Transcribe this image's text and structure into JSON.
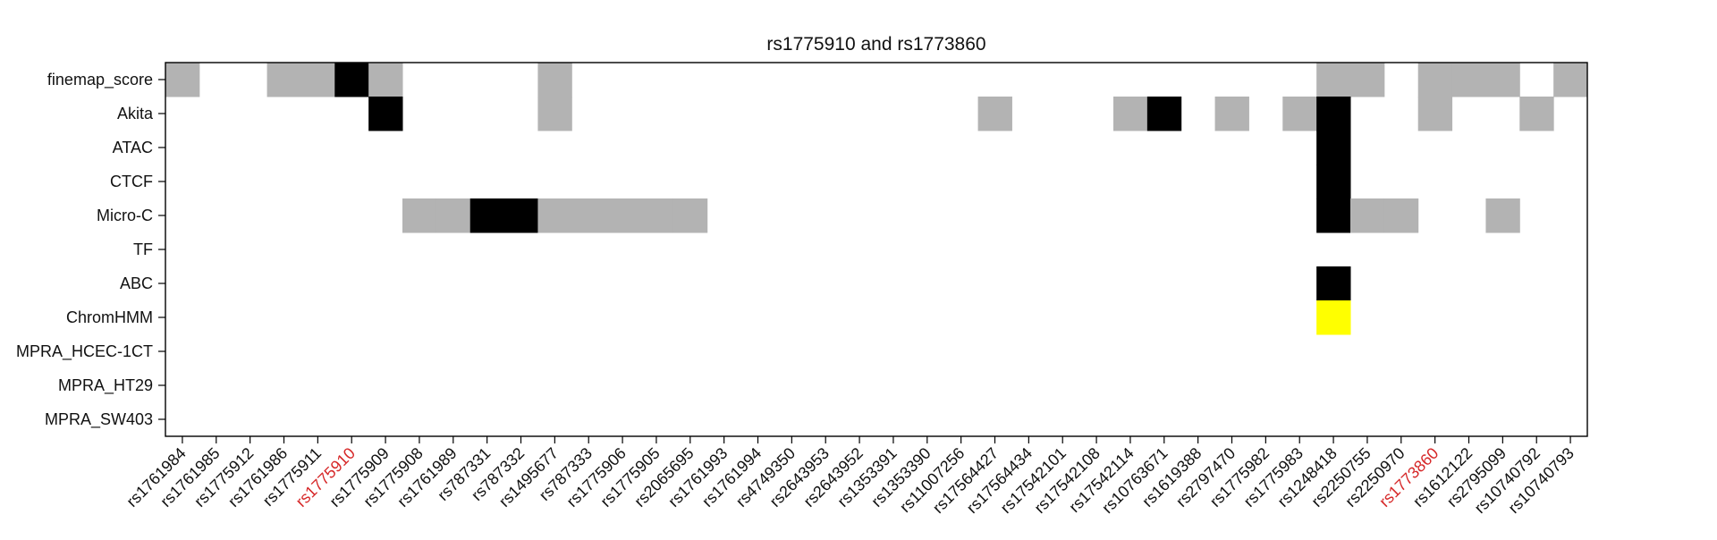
{
  "chart_data": {
    "type": "heatmap",
    "title": "rs1775910 and rs1773860",
    "rows": [
      "finemap_score",
      "Akita",
      "ATAC",
      "CTCF",
      "Micro-C",
      "TF",
      "ABC",
      "ChromHMM",
      "MPRA_HCEC-1CT",
      "MPRA_HT29",
      "MPRA_SW403"
    ],
    "columns": [
      "rs1761984",
      "rs1761985",
      "rs1775912",
      "rs1761986",
      "rs1775911",
      "rs1775910",
      "rs1775909",
      "rs1775908",
      "rs1761989",
      "rs787331",
      "rs787332",
      "rs1495677",
      "rs787333",
      "rs1775906",
      "rs1775905",
      "rs2065695",
      "rs1761993",
      "rs1761994",
      "rs4749350",
      "rs2643953",
      "rs2643952",
      "rs1353391",
      "rs1353390",
      "rs11007256",
      "rs17564427",
      "rs17564434",
      "rs17542101",
      "rs17542108",
      "rs17542114",
      "rs10763671",
      "rs1619388",
      "rs2797470",
      "rs1775982",
      "rs1775983",
      "rs1248418",
      "rs2250755",
      "rs2250970",
      "rs1773860",
      "rs1612122",
      "rs2795099",
      "rs10740792",
      "rs10740793"
    ],
    "highlighted_columns": [
      "rs1775910",
      "rs1773860"
    ],
    "highlight_color": "#d62728",
    "legend": {
      "0": "#ffffff",
      "1": "#b3b3b3",
      "2": "#000000",
      "3": "#ffff00"
    },
    "matrix": [
      [
        1,
        0,
        0,
        1,
        1,
        2,
        1,
        0,
        0,
        0,
        0,
        1,
        0,
        0,
        0,
        0,
        0,
        0,
        0,
        0,
        0,
        0,
        0,
        0,
        0,
        0,
        0,
        0,
        0,
        0,
        0,
        0,
        0,
        0,
        1,
        1,
        0,
        1,
        1,
        1,
        0,
        1
      ],
      [
        0,
        0,
        0,
        0,
        0,
        0,
        2,
        0,
        0,
        0,
        0,
        1,
        0,
        0,
        0,
        0,
        0,
        0,
        0,
        0,
        0,
        0,
        0,
        0,
        1,
        0,
        0,
        0,
        1,
        2,
        0,
        1,
        0,
        1,
        2,
        0,
        0,
        1,
        0,
        0,
        1,
        0
      ],
      [
        0,
        0,
        0,
        0,
        0,
        0,
        0,
        0,
        0,
        0,
        0,
        0,
        0,
        0,
        0,
        0,
        0,
        0,
        0,
        0,
        0,
        0,
        0,
        0,
        0,
        0,
        0,
        0,
        0,
        0,
        0,
        0,
        0,
        0,
        2,
        0,
        0,
        0,
        0,
        0,
        0,
        0
      ],
      [
        0,
        0,
        0,
        0,
        0,
        0,
        0,
        0,
        0,
        0,
        0,
        0,
        0,
        0,
        0,
        0,
        0,
        0,
        0,
        0,
        0,
        0,
        0,
        0,
        0,
        0,
        0,
        0,
        0,
        0,
        0,
        0,
        0,
        0,
        2,
        0,
        0,
        0,
        0,
        0,
        0,
        0
      ],
      [
        0,
        0,
        0,
        0,
        0,
        0,
        0,
        1,
        1,
        2,
        2,
        1,
        1,
        1,
        1,
        1,
        0,
        0,
        0,
        0,
        0,
        0,
        0,
        0,
        0,
        0,
        0,
        0,
        0,
        0,
        0,
        0,
        0,
        0,
        2,
        1,
        1,
        0,
        0,
        1,
        0,
        0
      ],
      [
        0,
        0,
        0,
        0,
        0,
        0,
        0,
        0,
        0,
        0,
        0,
        0,
        0,
        0,
        0,
        0,
        0,
        0,
        0,
        0,
        0,
        0,
        0,
        0,
        0,
        0,
        0,
        0,
        0,
        0,
        0,
        0,
        0,
        0,
        0,
        0,
        0,
        0,
        0,
        0,
        0,
        0
      ],
      [
        0,
        0,
        0,
        0,
        0,
        0,
        0,
        0,
        0,
        0,
        0,
        0,
        0,
        0,
        0,
        0,
        0,
        0,
        0,
        0,
        0,
        0,
        0,
        0,
        0,
        0,
        0,
        0,
        0,
        0,
        0,
        0,
        0,
        0,
        2,
        0,
        0,
        0,
        0,
        0,
        0,
        0
      ],
      [
        0,
        0,
        0,
        0,
        0,
        0,
        0,
        0,
        0,
        0,
        0,
        0,
        0,
        0,
        0,
        0,
        0,
        0,
        0,
        0,
        0,
        0,
        0,
        0,
        0,
        0,
        0,
        0,
        0,
        0,
        0,
        0,
        0,
        0,
        3,
        0,
        0,
        0,
        0,
        0,
        0,
        0
      ],
      [
        0,
        0,
        0,
        0,
        0,
        0,
        0,
        0,
        0,
        0,
        0,
        0,
        0,
        0,
        0,
        0,
        0,
        0,
        0,
        0,
        0,
        0,
        0,
        0,
        0,
        0,
        0,
        0,
        0,
        0,
        0,
        0,
        0,
        0,
        0,
        0,
        0,
        0,
        0,
        0,
        0,
        0
      ],
      [
        0,
        0,
        0,
        0,
        0,
        0,
        0,
        0,
        0,
        0,
        0,
        0,
        0,
        0,
        0,
        0,
        0,
        0,
        0,
        0,
        0,
        0,
        0,
        0,
        0,
        0,
        0,
        0,
        0,
        0,
        0,
        0,
        0,
        0,
        0,
        0,
        0,
        0,
        0,
        0,
        0,
        0
      ],
      [
        0,
        0,
        0,
        0,
        0,
        0,
        0,
        0,
        0,
        0,
        0,
        0,
        0,
        0,
        0,
        0,
        0,
        0,
        0,
        0,
        0,
        0,
        0,
        0,
        0,
        0,
        0,
        0,
        0,
        0,
        0,
        0,
        0,
        0,
        0,
        0,
        0,
        0,
        0,
        0,
        0,
        0
      ]
    ]
  }
}
